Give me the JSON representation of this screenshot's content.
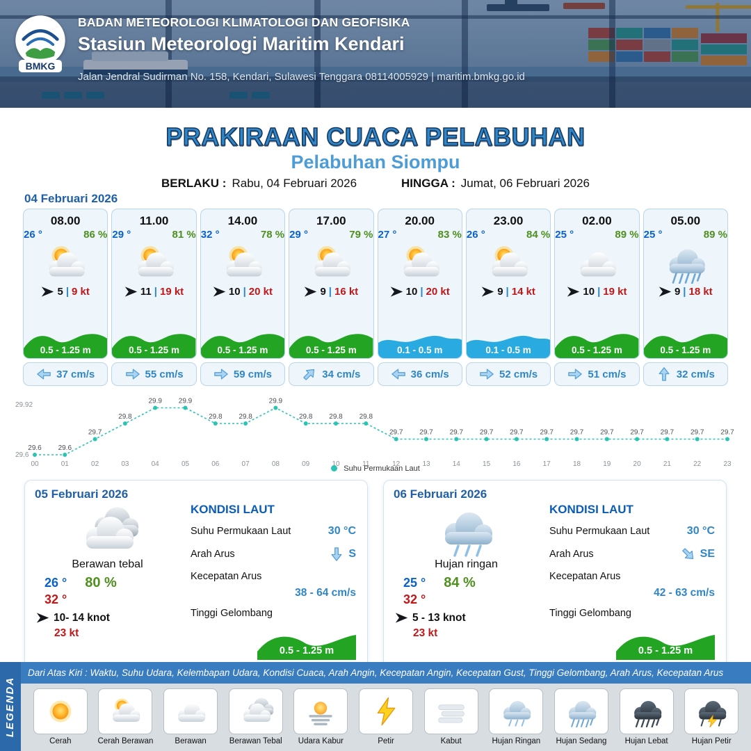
{
  "header": {
    "logo": "BMKG",
    "agency": "BADAN METEOROLOGI KLIMATOLOGI DAN GEOFISIKA",
    "station": "Stasiun Meteorologi Maritim Kendari",
    "address": "Jalan Jendral Sudirman No. 158, Kendari, Sulawesi Tenggara  08114005929 | maritim.bmkg.go.id"
  },
  "title": {
    "main": "PRAKIRAAN CUACA PELABUHAN",
    "port": "Pelabuhan Siompu",
    "berlaku_label": "BERLAKU :",
    "berlaku_value": "Rabu, 04 Februari 2026",
    "hingga_label": "HINGGA :",
    "hingga_value": "Jumat, 06 Februari 2026"
  },
  "hourly": {
    "date": "04 Februari 2026",
    "divider": "|",
    "cards": [
      {
        "time": "08.00",
        "temp": "26 °",
        "humidity": "86 %",
        "icon": "cerah-berawan",
        "wind_speed": "5",
        "gust": "9 kt",
        "wave": "0.5 - 1.25 m",
        "wave_type": "green",
        "current_dir": "left",
        "current": "37 cm/s"
      },
      {
        "time": "11.00",
        "temp": "29 °",
        "humidity": "81 %",
        "icon": "cerah-berawan",
        "wind_speed": "11",
        "gust": "19 kt",
        "wave": "0.5 - 1.25 m",
        "wave_type": "green",
        "current_dir": "right",
        "current": "55 cm/s"
      },
      {
        "time": "14.00",
        "temp": "32 °",
        "humidity": "78 %",
        "icon": "cerah-berawan",
        "wind_speed": "10",
        "gust": "20 kt",
        "wave": "0.5 - 1.25 m",
        "wave_type": "green",
        "current_dir": "right",
        "current": "59 cm/s"
      },
      {
        "time": "17.00",
        "temp": "29 °",
        "humidity": "79 %",
        "icon": "cerah-berawan",
        "wind_speed": "9",
        "gust": "16 kt",
        "wave": "0.5 - 1.25 m",
        "wave_type": "green",
        "current_dir": "up-right",
        "current": "34 cm/s"
      },
      {
        "time": "20.00",
        "temp": "27 °",
        "humidity": "83 %",
        "icon": "cerah-berawan",
        "wind_speed": "10",
        "gust": "20 kt",
        "wave": "0.1 - 0.5 m",
        "wave_type": "blue",
        "current_dir": "left",
        "current": "36 cm/s"
      },
      {
        "time": "23.00",
        "temp": "26 °",
        "humidity": "84 %",
        "icon": "cerah-berawan",
        "wind_speed": "9",
        "gust": "14 kt",
        "wave": "0.1 - 0.5 m",
        "wave_type": "blue",
        "current_dir": "right",
        "current": "52 cm/s"
      },
      {
        "time": "02.00",
        "temp": "25 °",
        "humidity": "89 %",
        "icon": "berawan",
        "wind_speed": "10",
        "gust": "19 kt",
        "wave": "0.5 - 1.25 m",
        "wave_type": "green",
        "current_dir": "right",
        "current": "51 cm/s"
      },
      {
        "time": "05.00",
        "temp": "25 °",
        "humidity": "89 %",
        "icon": "hujan-sedang",
        "wind_speed": "9",
        "gust": "18 kt",
        "wave": "0.5 - 1.25 m",
        "wave_type": "green",
        "current_dir": "up",
        "current": "32 cm/s"
      }
    ]
  },
  "chart_data": {
    "type": "line",
    "series_name": "Suhu Permukaan Laut",
    "x": [
      "00",
      "01",
      "02",
      "03",
      "04",
      "05",
      "06",
      "07",
      "08",
      "09",
      "10",
      "11",
      "12",
      "13",
      "14",
      "15",
      "16",
      "17",
      "18",
      "19",
      "20",
      "21",
      "22",
      "23"
    ],
    "values": [
      29.6,
      29.6,
      29.7,
      29.8,
      29.9,
      29.9,
      29.8,
      29.8,
      29.9,
      29.8,
      29.8,
      29.8,
      29.7,
      29.7,
      29.7,
      29.7,
      29.7,
      29.7,
      29.7,
      29.7,
      29.7,
      29.7,
      29.7,
      29.7
    ],
    "ylim": [
      29.6,
      29.92
    ],
    "yticks": [
      "29.92",
      "29.6"
    ],
    "line_color": "#2bc4b4",
    "grid": false,
    "legend_position": "bottom"
  },
  "daily_labels": {
    "sea_title": "KONDISI LAUT",
    "sst": "Suhu Permukaan Laut",
    "arah_arus": "Arah Arus",
    "kecepatan_arus": "Kecepatan Arus",
    "tinggi_gelombang": "Tinggi Gelombang"
  },
  "daily": [
    {
      "date": "05 Februari 2026",
      "icon": "berawan-tebal",
      "condition": "Berawan tebal",
      "temp_min": "26 °",
      "humidity": "80 %",
      "temp_max": "32 °",
      "wind": "10- 14 knot",
      "gust": "23 kt",
      "sst": "30 °C",
      "current_dir": "down",
      "current_dir_text": "S",
      "current_speed": "38 - 64 cm/s",
      "wave": "0.5 - 1.25 m"
    },
    {
      "date": "06 Februari 2026",
      "icon": "hujan-ringan",
      "condition": "Hujan ringan",
      "temp_min": "25 °",
      "humidity": "84 %",
      "temp_max": "32 °",
      "wind": "5 - 13 knot",
      "gust": "23 kt",
      "sst": "30 °C",
      "current_dir": "down-right",
      "current_dir_text": "SE",
      "current_speed": "42 - 63 cm/s",
      "wave": "0.5 - 1.25 m"
    }
  ],
  "legend": {
    "title": "LEGENDA",
    "note": "Dari Atas Kiri : Waktu, Suhu Udara, Kelembapan Udara, Kondisi Cuaca, Arah Angin, Kecepatan Angin, Kecepatan Gust, Tinggi Gelombang, Arah Arus, Kecepatan Arus",
    "items": [
      {
        "label": "Cerah",
        "icon": "cerah"
      },
      {
        "label": "Cerah Berawan",
        "icon": "cerah-berawan"
      },
      {
        "label": "Berawan",
        "icon": "berawan"
      },
      {
        "label": "Berawan Tebal",
        "icon": "berawan-tebal"
      },
      {
        "label": "Udara Kabur",
        "icon": "udara-kabur"
      },
      {
        "label": "Petir",
        "icon": "petir"
      },
      {
        "label": "Kabut",
        "icon": "kabut"
      },
      {
        "label": "Hujan Ringan",
        "icon": "hujan-ringan"
      },
      {
        "label": "Hujan Sedang",
        "icon": "hujan-sedang"
      },
      {
        "label": "Hujan Lebat",
        "icon": "hujan-lebat"
      },
      {
        "label": "Hujan Petir",
        "icon": "hujan-petir"
      }
    ]
  },
  "colors": {
    "wave_green": "#23a523",
    "wave_blue": "#29abe2",
    "temp_blue": "#0a62c8",
    "humidity_green": "#4e8f1e",
    "gust_red": "#c01818",
    "title_blue": "#2f87c9",
    "chart_teal": "#2bc4b4"
  }
}
